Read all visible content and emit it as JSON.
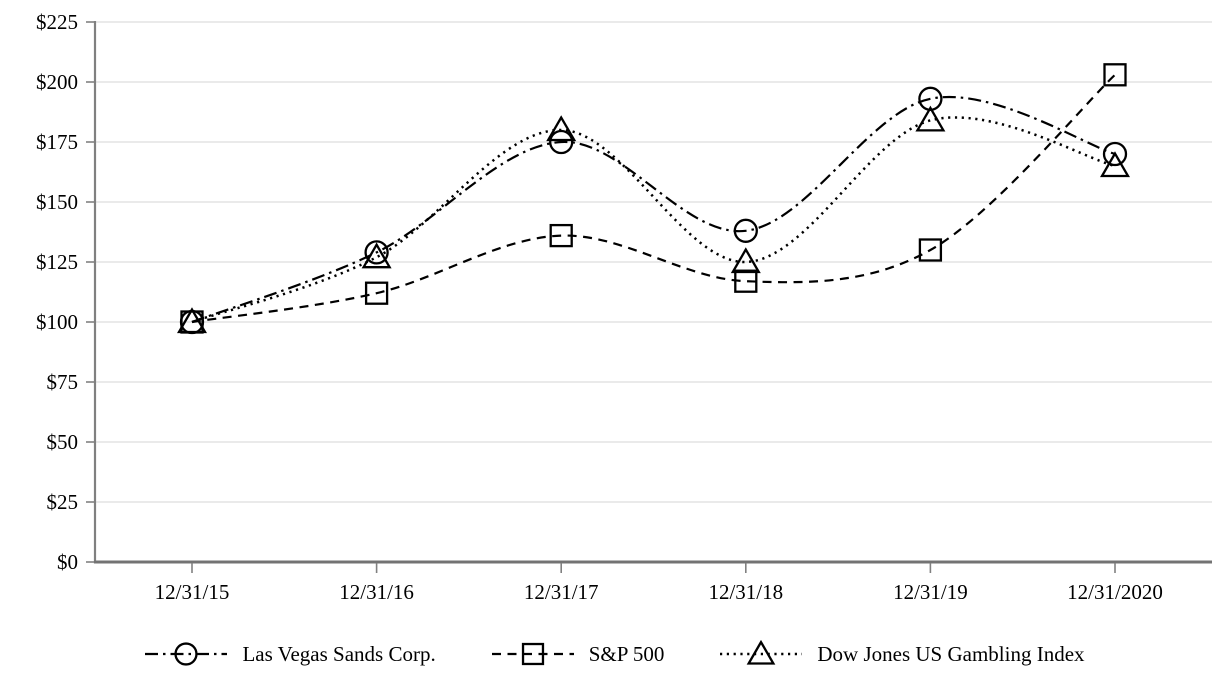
{
  "chart_data": {
    "type": "line",
    "title": "",
    "categories": [
      "12/31/15",
      "12/31/16",
      "12/31/17",
      "12/31/18",
      "12/31/19",
      "12/31/2020"
    ],
    "series": [
      {
        "name": "Las Vegas Sands Corp.",
        "marker": "circle",
        "line_style": "dash-dot",
        "values": [
          100,
          129,
          175,
          138,
          193,
          170
        ]
      },
      {
        "name": "S&P 500",
        "marker": "square",
        "line_style": "dashed",
        "values": [
          100,
          112,
          136,
          117,
          130,
          203
        ]
      },
      {
        "name": "Dow Jones US Gambling Index",
        "marker": "triangle",
        "line_style": "dotted",
        "values": [
          100,
          127,
          180,
          125,
          184,
          165
        ]
      }
    ],
    "y_axis": {
      "min": 0,
      "max": 225,
      "step": 25,
      "tick_labels": [
        "$0",
        "$25",
        "$50",
        "$75",
        "$100",
        "$125",
        "$150",
        "$175",
        "$200",
        "$225"
      ]
    },
    "x_axis": {
      "labels": [
        "12/31/15",
        "12/31/16",
        "12/31/17",
        "12/31/18",
        "12/31/19",
        "12/31/2020"
      ]
    },
    "grid": true,
    "smoothed_lines": true,
    "legend_position": "bottom",
    "colors": {
      "series_line": "#000000",
      "gridline": "#e4e4e4",
      "axis": "#808080",
      "marker_fill": "none",
      "text": "#000000"
    }
  }
}
